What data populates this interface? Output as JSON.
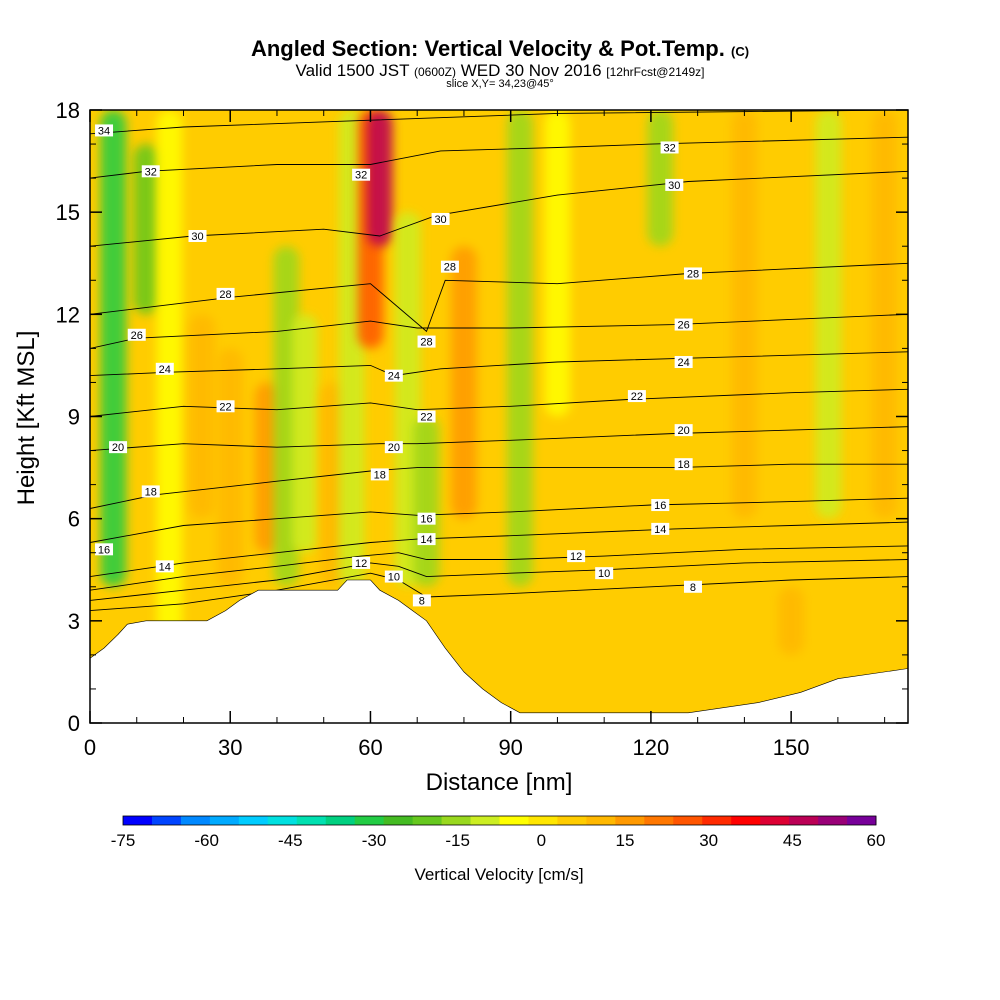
{
  "title": {
    "main": "Angled Section: Vertical Velocity & Pot.Temp.",
    "unit": "(C)",
    "valid_a": "Valid 1500 JST",
    "valid_z": "(0600Z)",
    "valid_b": "WED 30 Nov 2016",
    "fcst": "[12hrFcst@2149z]",
    "slice": "slice X,Y= 34,23@45°"
  },
  "chart_data": {
    "type": "heatmap",
    "xlabel": "Distance [nm]",
    "ylabel": "Height [Kft MSL]",
    "xlim": [
      0,
      175
    ],
    "ylim": [
      0,
      18
    ],
    "xticks": [
      0,
      30,
      60,
      90,
      120,
      150
    ],
    "yticks": [
      0,
      3,
      6,
      9,
      12,
      15,
      18
    ],
    "colorbar": {
      "label": "Vertical Velocity [cm/s]",
      "ticks": [
        -75,
        -60,
        -45,
        -30,
        -15,
        0,
        15,
        30,
        45,
        60
      ],
      "range": [
        -75,
        60
      ],
      "colors": [
        "#0000ff",
        "#0044ff",
        "#0088ff",
        "#00aaff",
        "#00ccff",
        "#00e0e0",
        "#00e0b0",
        "#00d080",
        "#22cc44",
        "#44bb22",
        "#66c81e",
        "#99d81e",
        "#ccee22",
        "#ffff00",
        "#ffe600",
        "#ffcc00",
        "#ffb800",
        "#ff9900",
        "#ff7700",
        "#ff5500",
        "#ff2a00",
        "#ff0000",
        "#dd0033",
        "#bb0055",
        "#990077",
        "#770099"
      ]
    },
    "terrain": [
      [
        0,
        1.9
      ],
      [
        3,
        2.2
      ],
      [
        6,
        2.6
      ],
      [
        8,
        2.9
      ],
      [
        12,
        3.0
      ],
      [
        25,
        3.0
      ],
      [
        29,
        3.3
      ],
      [
        32,
        3.6
      ],
      [
        36,
        3.9
      ],
      [
        53,
        3.9
      ],
      [
        55,
        4.2
      ],
      [
        60,
        4.2
      ],
      [
        62,
        3.9
      ],
      [
        66,
        3.6
      ],
      [
        69,
        3.3
      ],
      [
        72,
        3.0
      ],
      [
        76,
        2.2
      ],
      [
        80,
        1.5
      ],
      [
        84,
        1.0
      ],
      [
        88,
        0.6
      ],
      [
        92,
        0.3
      ],
      [
        108,
        0.3
      ],
      [
        128,
        0.3
      ],
      [
        143,
        0.6
      ],
      [
        152,
        0.9
      ],
      [
        160,
        1.3
      ],
      [
        175,
        1.6
      ]
    ],
    "velocity_field": [
      {
        "x": 5,
        "y_range": [
          4,
          18
        ],
        "value": -30
      },
      {
        "x": 12,
        "y_range": [
          12,
          17
        ],
        "value": -20
      },
      {
        "x": 17,
        "y_range": [
          0,
          18
        ],
        "value": -3
      },
      {
        "x": 24,
        "y_range": [
          6,
          12
        ],
        "value": 10
      },
      {
        "x": 30,
        "y_range": [
          4,
          11
        ],
        "value": 12
      },
      {
        "x": 38,
        "y_range": [
          5,
          10
        ],
        "value": 18
      },
      {
        "x": 42,
        "y_range": [
          4,
          14
        ],
        "value": -15
      },
      {
        "x": 46,
        "y_range": [
          5,
          12
        ],
        "value": -8
      },
      {
        "x": 52,
        "y_range": [
          4,
          10
        ],
        "value": 10
      },
      {
        "x": 56,
        "y_range": [
          4,
          18
        ],
        "value": -10
      },
      {
        "x": 60,
        "y_range": [
          11,
          18
        ],
        "value": 25
      },
      {
        "x": 62,
        "y_range": [
          14,
          18
        ],
        "value": 45
      },
      {
        "x": 68,
        "y_range": [
          4,
          15
        ],
        "value": -10
      },
      {
        "x": 72,
        "y_range": [
          4,
          9
        ],
        "value": -15
      },
      {
        "x": 80,
        "y_range": [
          6,
          14
        ],
        "value": 15
      },
      {
        "x": 92,
        "y_range": [
          4,
          18
        ],
        "value": -15
      },
      {
        "x": 100,
        "y_range": [
          9,
          18
        ],
        "value": -5
      },
      {
        "x": 122,
        "y_range": [
          14,
          18
        ],
        "value": -15
      },
      {
        "x": 140,
        "y_range": [
          6,
          18
        ],
        "value": 12
      },
      {
        "x": 158,
        "y_range": [
          6,
          18
        ],
        "value": -8
      },
      {
        "x": 170,
        "y_range": [
          6,
          18
        ],
        "value": 12
      },
      {
        "x": 150,
        "y_range": [
          2,
          4
        ],
        "value": 10
      }
    ],
    "contours": [
      {
        "level": 8,
        "points": [
          [
            0,
            3.3
          ],
          [
            20,
            3.5
          ],
          [
            40,
            3.9
          ],
          [
            60,
            4.4
          ],
          [
            66,
            4.2
          ],
          [
            72,
            3.7
          ],
          [
            90,
            3.8
          ],
          [
            120,
            4.0
          ],
          [
            150,
            4.2
          ],
          [
            175,
            4.3
          ]
        ]
      },
      {
        "level": 10,
        "points": [
          [
            0,
            3.6
          ],
          [
            20,
            3.9
          ],
          [
            40,
            4.2
          ],
          [
            60,
            4.7
          ],
          [
            66,
            4.6
          ],
          [
            72,
            4.3
          ],
          [
            90,
            4.4
          ],
          [
            110,
            4.5
          ],
          [
            140,
            4.7
          ],
          [
            175,
            4.8
          ]
        ]
      },
      {
        "level": 12,
        "points": [
          [
            0,
            3.9
          ],
          [
            20,
            4.3
          ],
          [
            40,
            4.6
          ],
          [
            58,
            4.9
          ],
          [
            66,
            5.0
          ],
          [
            72,
            4.8
          ],
          [
            90,
            4.8
          ],
          [
            110,
            4.9
          ],
          [
            140,
            5.1
          ],
          [
            175,
            5.2
          ]
        ]
      },
      {
        "level": 14,
        "points": [
          [
            0,
            4.3
          ],
          [
            20,
            4.7
          ],
          [
            40,
            5.0
          ],
          [
            60,
            5.3
          ],
          [
            70,
            5.4
          ],
          [
            90,
            5.5
          ],
          [
            125,
            5.7
          ],
          [
            150,
            5.8
          ],
          [
            175,
            5.9
          ]
        ]
      },
      {
        "level": 16,
        "points": [
          [
            0,
            5.3
          ],
          [
            20,
            5.8
          ],
          [
            40,
            6.0
          ],
          [
            60,
            6.2
          ],
          [
            70,
            6.1
          ],
          [
            90,
            6.2
          ],
          [
            120,
            6.4
          ],
          [
            150,
            6.5
          ],
          [
            175,
            6.6
          ]
        ]
      },
      {
        "level": 18,
        "points": [
          [
            0,
            6.3
          ],
          [
            14,
            6.7
          ],
          [
            40,
            7.1
          ],
          [
            60,
            7.4
          ],
          [
            70,
            7.5
          ],
          [
            90,
            7.5
          ],
          [
            125,
            7.5
          ],
          [
            150,
            7.6
          ],
          [
            175,
            7.6
          ]
        ]
      },
      {
        "level": 20,
        "points": [
          [
            0,
            8.0
          ],
          [
            20,
            8.2
          ],
          [
            40,
            8.1
          ],
          [
            62,
            8.2
          ],
          [
            70,
            8.2
          ],
          [
            90,
            8.3
          ],
          [
            125,
            8.5
          ],
          [
            150,
            8.6
          ],
          [
            175,
            8.7
          ]
        ]
      },
      {
        "level": 22,
        "points": [
          [
            0,
            9.0
          ],
          [
            20,
            9.3
          ],
          [
            40,
            9.2
          ],
          [
            60,
            9.4
          ],
          [
            70,
            9.2
          ],
          [
            90,
            9.3
          ],
          [
            115,
            9.5
          ],
          [
            150,
            9.7
          ],
          [
            175,
            9.8
          ]
        ]
      },
      {
        "level": 24,
        "points": [
          [
            0,
            10.2
          ],
          [
            17,
            10.3
          ],
          [
            40,
            10.4
          ],
          [
            60,
            10.5
          ],
          [
            65,
            10.2
          ],
          [
            75,
            10.4
          ],
          [
            100,
            10.6
          ],
          [
            125,
            10.7
          ],
          [
            175,
            10.9
          ]
        ]
      },
      {
        "level": 26,
        "points": [
          [
            0,
            11.0
          ],
          [
            10,
            11.3
          ],
          [
            40,
            11.5
          ],
          [
            60,
            11.8
          ],
          [
            70,
            11.6
          ],
          [
            90,
            11.6
          ],
          [
            125,
            11.7
          ],
          [
            175,
            12.0
          ]
        ]
      },
      {
        "level": 28,
        "points": [
          [
            0,
            12.0
          ],
          [
            30,
            12.5
          ],
          [
            60,
            12.9
          ],
          [
            72,
            11.5
          ],
          [
            76,
            13.0
          ],
          [
            100,
            12.9
          ],
          [
            128,
            13.2
          ],
          [
            175,
            13.5
          ]
        ]
      },
      {
        "level": 30,
        "points": [
          [
            0,
            14.0
          ],
          [
            22,
            14.3
          ],
          [
            50,
            14.5
          ],
          [
            62,
            14.3
          ],
          [
            74,
            14.9
          ],
          [
            100,
            15.5
          ],
          [
            128,
            15.9
          ],
          [
            175,
            16.2
          ]
        ]
      },
      {
        "level": 32,
        "points": [
          [
            0,
            16.0
          ],
          [
            12,
            16.2
          ],
          [
            40,
            16.4
          ],
          [
            60,
            16.4
          ],
          [
            75,
            16.8
          ],
          [
            100,
            16.9
          ],
          [
            120,
            17.0
          ],
          [
            175,
            17.2
          ]
        ]
      },
      {
        "level": 34,
        "points": [
          [
            0,
            17.3
          ],
          [
            20,
            17.5
          ],
          [
            60,
            17.7
          ],
          [
            100,
            17.9
          ],
          [
            175,
            18.0
          ]
        ]
      }
    ],
    "contour_labels": [
      {
        "text": "34",
        "x": 3,
        "y": 17.4
      },
      {
        "text": "32",
        "x": 13,
        "y": 16.2
      },
      {
        "text": "32",
        "x": 58,
        "y": 16.1
      },
      {
        "text": "32",
        "x": 124,
        "y": 16.9
      },
      {
        "text": "30",
        "x": 23,
        "y": 14.3
      },
      {
        "text": "30",
        "x": 75,
        "y": 14.8
      },
      {
        "text": "30",
        "x": 125,
        "y": 15.8
      },
      {
        "text": "28",
        "x": 29,
        "y": 12.6
      },
      {
        "text": "28",
        "x": 77,
        "y": 13.4
      },
      {
        "text": "28",
        "x": 129,
        "y": 13.2
      },
      {
        "text": "26",
        "x": 10,
        "y": 11.4
      },
      {
        "text": "26",
        "x": 127,
        "y": 11.7
      },
      {
        "text": "28",
        "x": 72,
        "y": 11.2
      },
      {
        "text": "24",
        "x": 16,
        "y": 10.4
      },
      {
        "text": "24",
        "x": 65,
        "y": 10.2
      },
      {
        "text": "24",
        "x": 127,
        "y": 10.6
      },
      {
        "text": "22",
        "x": 29,
        "y": 9.3
      },
      {
        "text": "22",
        "x": 72,
        "y": 9.0
      },
      {
        "text": "22",
        "x": 117,
        "y": 9.6
      },
      {
        "text": "20",
        "x": 6,
        "y": 8.1
      },
      {
        "text": "20",
        "x": 65,
        "y": 8.1
      },
      {
        "text": "20",
        "x": 127,
        "y": 8.6
      },
      {
        "text": "18",
        "x": 13,
        "y": 6.8
      },
      {
        "text": "18",
        "x": 62,
        "y": 7.3
      },
      {
        "text": "18",
        "x": 127,
        "y": 7.6
      },
      {
        "text": "16",
        "x": 3,
        "y": 5.1
      },
      {
        "text": "16",
        "x": 72,
        "y": 6.0
      },
      {
        "text": "16",
        "x": 122,
        "y": 6.4
      },
      {
        "text": "14",
        "x": 16,
        "y": 4.6
      },
      {
        "text": "14",
        "x": 72,
        "y": 5.4
      },
      {
        "text": "14",
        "x": 122,
        "y": 5.7
      },
      {
        "text": "12",
        "x": 58,
        "y": 4.7
      },
      {
        "text": "12",
        "x": 104,
        "y": 4.9
      },
      {
        "text": "10",
        "x": 65,
        "y": 4.3
      },
      {
        "text": "10",
        "x": 110,
        "y": 4.4
      },
      {
        "text": "8",
        "x": 71,
        "y": 3.6
      },
      {
        "text": "8",
        "x": 129,
        "y": 4.0
      }
    ]
  }
}
